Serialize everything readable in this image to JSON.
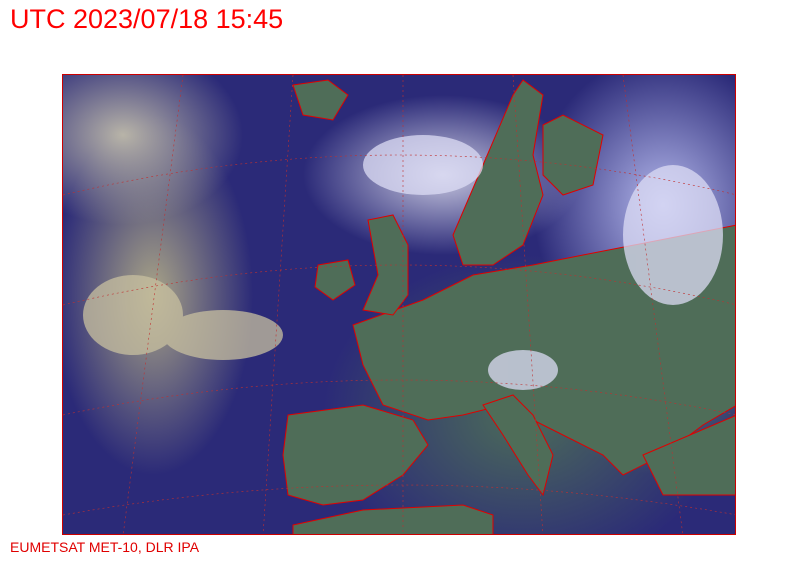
{
  "title": "UTC 2023/07/18 15:45",
  "credit": "EUMETSAT MET-10, DLR IPA",
  "colors": {
    "label": "#ff0000",
    "coastline": "#e00000",
    "ocean": "#2b2a78",
    "land": "#4c6c58",
    "cloud": "#d8d8f0"
  }
}
